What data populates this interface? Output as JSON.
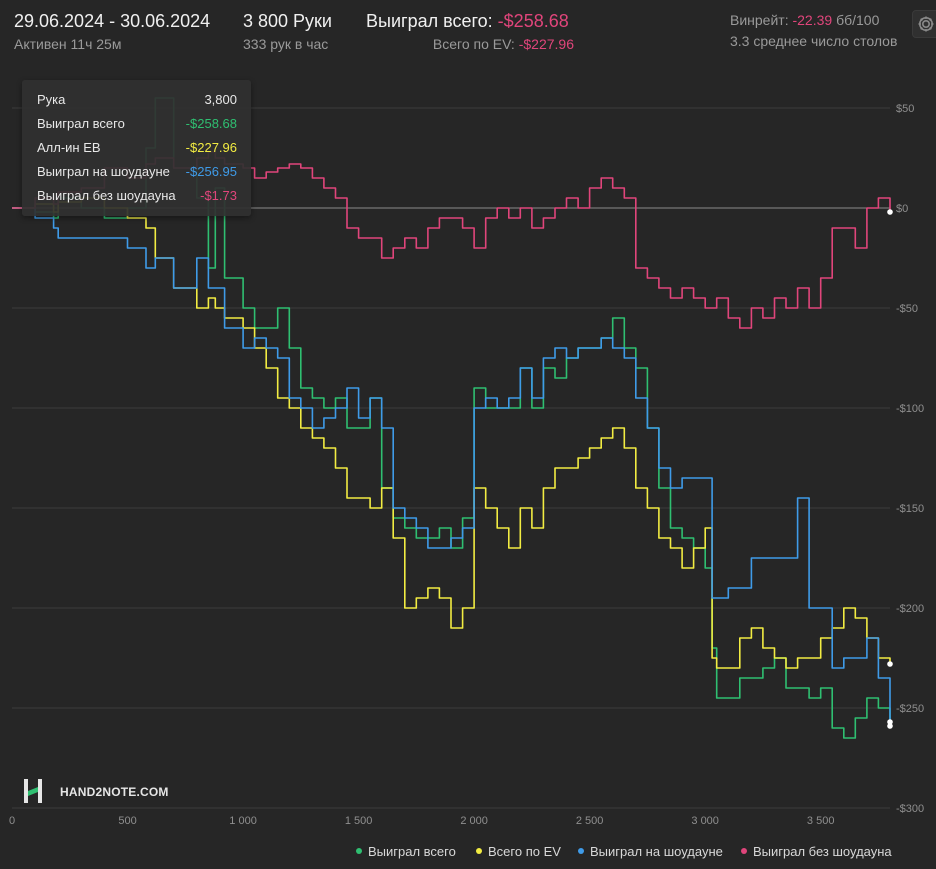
{
  "header": {
    "date_range": "29.06.2024 - 30.06.2024",
    "active_time": "Активен 11ч 25м",
    "hands_count": "3 800 Руки",
    "hands_per_hour": "333 рук в час",
    "won_total_label": "Выиграл всего:",
    "won_total_value": "-$258.68",
    "ev_total_label": "Всего по EV:",
    "ev_total_value": "-$227.96",
    "winrate_label": "Винрейт:",
    "winrate_value": "-22.39",
    "winrate_unit": "бб/100",
    "avg_tables": "3.3 среднее число столов",
    "settings_icon": "gear-icon"
  },
  "tooltip": {
    "rows": [
      {
        "label": "Рука",
        "value": "3,800",
        "color": "#e8e8e8"
      },
      {
        "label": "Выиграл всего",
        "value": "-$258.68",
        "color": "#2fbf71"
      },
      {
        "label": "Алл-ин ЕВ",
        "value": "-$227.96",
        "color": "#f2ec42"
      },
      {
        "label": "Выиграл на шоудауне",
        "value": "-$256.95",
        "color": "#3f9be8"
      },
      {
        "label": "Выиграл без шоудауна",
        "value": "-$1.73",
        "color": "#e0457b"
      }
    ]
  },
  "logo": {
    "text": "HAND2NOTE.COM"
  },
  "chart_data": {
    "type": "line",
    "xlim": [
      0,
      3800
    ],
    "ylim": [
      -300,
      50
    ],
    "x_ticks": [
      0,
      500,
      1000,
      1500,
      2000,
      2500,
      3000,
      3500
    ],
    "x_tick_labels": [
      "0",
      "500",
      "1 000",
      "1 500",
      "2 000",
      "2 500",
      "3 000",
      "3 500"
    ],
    "y_ticks": [
      50,
      0,
      -50,
      -100,
      -150,
      -200,
      -250,
      -300
    ],
    "y_tick_labels": [
      "$50",
      "$0",
      "-$50",
      "-$100",
      "-$150",
      "-$200",
      "-$250",
      "-$300"
    ],
    "grid": true,
    "legend_position": "bottom",
    "series": [
      {
        "name": "Выиграл всего",
        "color": "#2fbf71",
        "x": [
          0,
          100,
          180,
          200,
          300,
          400,
          500,
          580,
          620,
          700,
          800,
          850,
          880,
          920,
          1000,
          1050,
          1100,
          1150,
          1200,
          1250,
          1300,
          1350,
          1400,
          1450,
          1500,
          1550,
          1600,
          1650,
          1700,
          1750,
          1800,
          1850,
          1900,
          1950,
          2000,
          2050,
          2100,
          2150,
          2200,
          2250,
          2300,
          2350,
          2400,
          2450,
          2500,
          2550,
          2600,
          2650,
          2700,
          2750,
          2800,
          2850,
          2900,
          2950,
          3000,
          3030,
          3050,
          3100,
          3150,
          3200,
          3250,
          3300,
          3350,
          3400,
          3450,
          3500,
          3550,
          3600,
          3650,
          3700,
          3750,
          3800
        ],
        "y": [
          0,
          -2,
          -5,
          5,
          0,
          -5,
          0,
          30,
          55,
          20,
          5,
          -30,
          10,
          -35,
          -50,
          -60,
          -60,
          -50,
          -70,
          -90,
          -95,
          -100,
          -95,
          -110,
          -110,
          -95,
          -140,
          -155,
          -160,
          -165,
          -165,
          -160,
          -170,
          -155,
          -90,
          -100,
          -100,
          -100,
          -80,
          -100,
          -80,
          -85,
          -75,
          -70,
          -70,
          -65,
          -55,
          -70,
          -80,
          -110,
          -140,
          -160,
          -165,
          -170,
          -180,
          -220,
          -245,
          -245,
          -235,
          -235,
          -230,
          -225,
          -240,
          -240,
          -245,
          -240,
          -260,
          -265,
          -255,
          -245,
          -250,
          -259
        ]
      },
      {
        "name": "Всего по EV",
        "color": "#f2ec42",
        "x": [
          0,
          100,
          180,
          200,
          300,
          400,
          500,
          580,
          620,
          700,
          800,
          850,
          880,
          920,
          1000,
          1050,
          1100,
          1150,
          1200,
          1250,
          1300,
          1350,
          1400,
          1450,
          1500,
          1550,
          1600,
          1650,
          1700,
          1750,
          1800,
          1850,
          1900,
          1950,
          2000,
          2050,
          2100,
          2150,
          2200,
          2250,
          2300,
          2350,
          2400,
          2450,
          2500,
          2550,
          2600,
          2650,
          2700,
          2750,
          2800,
          2850,
          2900,
          2950,
          3000,
          3030,
          3050,
          3100,
          3150,
          3200,
          3250,
          3300,
          3350,
          3400,
          3450,
          3500,
          3550,
          3600,
          3650,
          3700,
          3750,
          3800
        ],
        "y": [
          0,
          2,
          -2,
          3,
          5,
          0,
          -5,
          -10,
          -25,
          -40,
          -50,
          -45,
          -50,
          -55,
          -60,
          -70,
          -80,
          -95,
          -100,
          -110,
          -115,
          -120,
          -130,
          -145,
          -145,
          -150,
          -140,
          -165,
          -200,
          -195,
          -190,
          -195,
          -210,
          -200,
          -140,
          -150,
          -160,
          -170,
          -150,
          -160,
          -140,
          -130,
          -130,
          -125,
          -120,
          -115,
          -110,
          -120,
          -140,
          -150,
          -165,
          -170,
          -180,
          -170,
          -160,
          -225,
          -230,
          -230,
          -215,
          -210,
          -220,
          -225,
          -230,
          -225,
          -225,
          -215,
          -210,
          -200,
          -205,
          -215,
          -225,
          -228
        ]
      },
      {
        "name": "Выиграл на шоудауне",
        "color": "#3f9be8",
        "x": [
          0,
          100,
          180,
          200,
          300,
          400,
          500,
          580,
          620,
          700,
          800,
          850,
          880,
          920,
          1000,
          1050,
          1100,
          1150,
          1200,
          1250,
          1300,
          1350,
          1400,
          1450,
          1500,
          1550,
          1600,
          1650,
          1700,
          1750,
          1800,
          1850,
          1900,
          1950,
          2000,
          2050,
          2100,
          2150,
          2200,
          2250,
          2300,
          2350,
          2400,
          2450,
          2500,
          2550,
          2600,
          2650,
          2700,
          2750,
          2800,
          2850,
          2900,
          2950,
          3000,
          3030,
          3050,
          3100,
          3150,
          3200,
          3250,
          3300,
          3350,
          3400,
          3450,
          3500,
          3550,
          3600,
          3650,
          3700,
          3750,
          3800
        ],
        "y": [
          0,
          -5,
          -10,
          -15,
          -15,
          -15,
          -20,
          -30,
          -25,
          -40,
          -25,
          -40,
          -40,
          -60,
          -70,
          -65,
          -70,
          -75,
          -95,
          -100,
          -110,
          -105,
          -100,
          -90,
          -105,
          -95,
          -110,
          -150,
          -155,
          -160,
          -170,
          -170,
          -165,
          -160,
          -100,
          -95,
          -100,
          -95,
          -80,
          -95,
          -75,
          -70,
          -75,
          -70,
          -70,
          -65,
          -70,
          -75,
          -95,
          -110,
          -130,
          -140,
          -135,
          -135,
          -135,
          -195,
          -195,
          -190,
          -190,
          -175,
          -175,
          -175,
          -175,
          -145,
          -200,
          -200,
          -230,
          -225,
          -225,
          -215,
          -235,
          -257
        ]
      },
      {
        "name": "Выиграл без шоудауна",
        "color": "#e0457b",
        "x": [
          0,
          100,
          180,
          200,
          300,
          400,
          500,
          580,
          620,
          700,
          800,
          850,
          880,
          920,
          1000,
          1050,
          1100,
          1150,
          1200,
          1250,
          1300,
          1350,
          1400,
          1450,
          1500,
          1550,
          1600,
          1650,
          1700,
          1750,
          1800,
          1850,
          1900,
          1950,
          2000,
          2050,
          2100,
          2150,
          2200,
          2250,
          2300,
          2350,
          2400,
          2450,
          2500,
          2550,
          2600,
          2650,
          2700,
          2750,
          2800,
          2850,
          2900,
          2950,
          3000,
          3030,
          3050,
          3100,
          3150,
          3200,
          3250,
          3300,
          3350,
          3400,
          3450,
          3500,
          3550,
          3600,
          3650,
          3700,
          3750,
          3800
        ],
        "y": [
          0,
          5,
          2,
          8,
          10,
          20,
          15,
          22,
          25,
          20,
          25,
          28,
          25,
          22,
          20,
          15,
          18,
          20,
          22,
          20,
          15,
          10,
          5,
          -10,
          -15,
          -15,
          -25,
          -20,
          -15,
          -20,
          -10,
          -5,
          -5,
          -10,
          -20,
          -5,
          0,
          -5,
          0,
          -10,
          -5,
          0,
          5,
          0,
          10,
          15,
          10,
          5,
          -30,
          -35,
          -40,
          -45,
          -40,
          -45,
          -50,
          -50,
          -45,
          -55,
          -60,
          -50,
          -55,
          -45,
          -50,
          -40,
          -50,
          -35,
          -10,
          -10,
          -20,
          0,
          5,
          -2
        ]
      }
    ]
  }
}
